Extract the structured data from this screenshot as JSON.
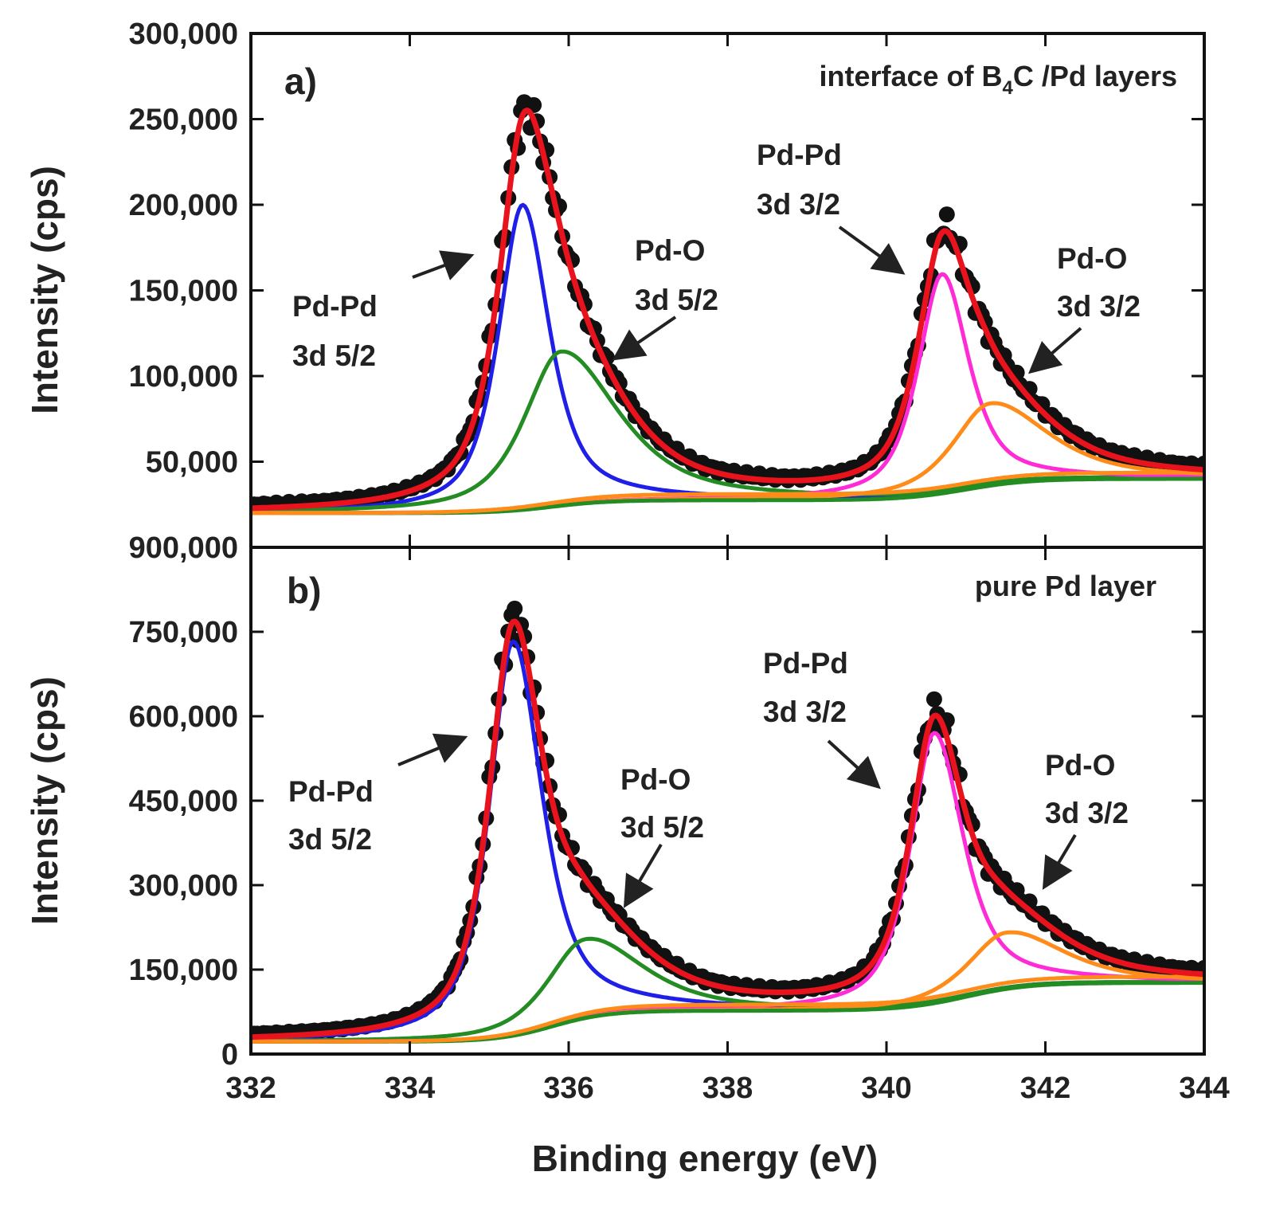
{
  "chart_data": {
    "type": "line",
    "xlabel": "Binding energy (eV)",
    "xlim": [
      332,
      344
    ],
    "x_ticks": [
      332,
      334,
      336,
      338,
      340,
      342,
      344
    ],
    "x_tick_labels": [
      "332",
      "334",
      "336",
      "338",
      "340",
      "342",
      "344"
    ],
    "panels": [
      {
        "id": "a",
        "letter": "a)",
        "caption_parts": [
          "interface of B",
          "4",
          "C /Pd layers"
        ],
        "ylabel": "Intensity (cps)",
        "ylim": [
          0,
          300000
        ],
        "y_ticks": [
          50000,
          100000,
          150000,
          200000,
          250000,
          300000
        ],
        "y_tick_labels": [
          "50,000",
          "100,000",
          "150,000",
          "200,000",
          "250,000",
          "300,000"
        ],
        "baseline": {
          "start": 20000,
          "end": 45000,
          "steps": [
            [
              335.8,
              0.35,
              0.3
            ],
            [
              341.0,
              0.4,
              0.5
            ]
          ]
        },
        "components": [
          {
            "name": "Pd-Pd 3d 5/2",
            "color": "#1f1fe8",
            "center": 335.42,
            "height": 178000,
            "hwhm_left": 0.36,
            "hwhm_right": 0.4
          },
          {
            "name": "Pd-O 3d 5/2",
            "color": "#238c23",
            "center": 335.9,
            "height": 90000,
            "hwhm_left": 0.55,
            "hwhm_right": 0.85
          },
          {
            "name": "Pd-Pd 3d 3/2",
            "color": "#ff2bd6",
            "center": 340.7,
            "height": 128000,
            "hwhm_left": 0.36,
            "hwhm_right": 0.4
          },
          {
            "name": "Pd-O 3d 3/2",
            "color": "#ff8c1a",
            "center": 341.3,
            "height": 48000,
            "hwhm_left": 0.55,
            "hwhm_right": 0.85
          }
        ],
        "fit_color": "#e8131c",
        "data_color": "#111111",
        "annotations": [
          {
            "lines": [
              "Pd-Pd",
              "3d 5/2"
            ]
          },
          {
            "lines": [
              "Pd-O",
              "3d 5/2"
            ]
          },
          {
            "lines": [
              "Pd-Pd",
              "3d 3/2"
            ]
          },
          {
            "lines": [
              "Pd-O",
              "3d 3/2"
            ]
          }
        ]
      },
      {
        "id": "b",
        "letter": "b)",
        "caption": "pure Pd layer",
        "ylabel": "Intensity (cps)",
        "ylim": [
          0,
          900000
        ],
        "y_ticks": [
          0,
          150000,
          300000,
          450000,
          600000,
          750000,
          900000
        ],
        "y_tick_labels": [
          "0",
          "150,000",
          "300,000",
          "450,000",
          "600,000",
          "750,000",
          "900,000"
        ],
        "baseline": {
          "start": 22000,
          "end": 132000,
          "steps": [
            [
              335.8,
              0.35,
              0.5
            ],
            [
              341.0,
              0.4,
              0.45
            ]
          ]
        },
        "components": [
          {
            "name": "Pd-Pd 3d 5/2",
            "color": "#1f1fe8",
            "center": 335.3,
            "height": 700000,
            "hwhm_left": 0.36,
            "hwhm_right": 0.44
          },
          {
            "name": "Pd-O 3d 5/2",
            "color": "#238c23",
            "center": 336.2,
            "height": 140000,
            "hwhm_left": 0.55,
            "hwhm_right": 0.85
          },
          {
            "name": "Pd-Pd 3d 3/2",
            "color": "#ff2bd6",
            "center": 340.6,
            "height": 480000,
            "hwhm_left": 0.36,
            "hwhm_right": 0.44
          },
          {
            "name": "Pd-O 3d 3/2",
            "color": "#ff8c1a",
            "center": 341.5,
            "height": 100000,
            "hwhm_left": 0.55,
            "hwhm_right": 0.85
          }
        ],
        "fit_color": "#e8131c",
        "data_color": "#111111",
        "annotations": [
          {
            "lines": [
              "Pd-Pd",
              "3d 5/2"
            ]
          },
          {
            "lines": [
              "Pd-O",
              "3d 5/2"
            ]
          },
          {
            "lines": [
              "Pd-Pd",
              "3d 3/2"
            ]
          },
          {
            "lines": [
              "Pd-O",
              "3d 3/2"
            ]
          }
        ]
      }
    ]
  }
}
